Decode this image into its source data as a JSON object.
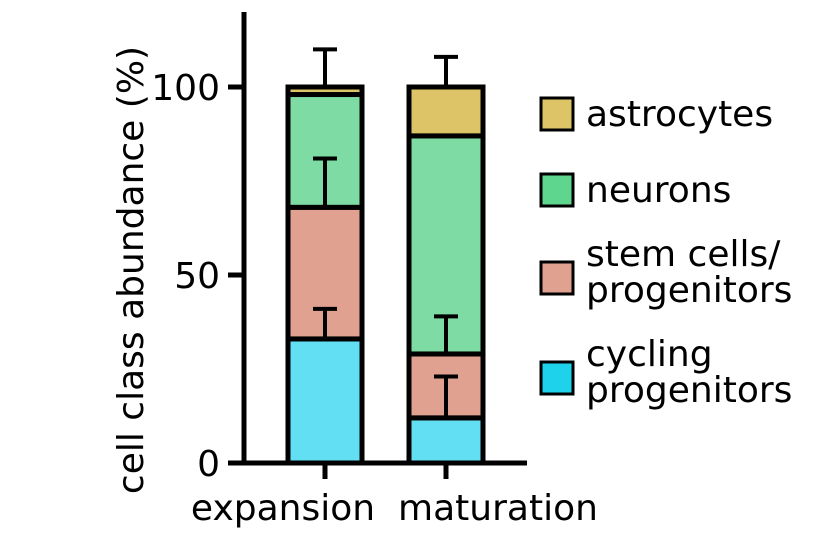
{
  "chart_data": {
    "type": "bar",
    "stacked": true,
    "ylabel": "cell class abundance (%)",
    "xlabel": "",
    "ylim": [
      0,
      120
    ],
    "yticks": [
      "0",
      "50",
      "100"
    ],
    "ytick_values": [
      0,
      50,
      100
    ],
    "categories": [
      "expansion",
      "maturation"
    ],
    "series": [
      {
        "name": "cycling progenitors",
        "values": [
          33,
          12
        ],
        "errors": [
          8,
          11
        ],
        "color": "#62dff3"
      },
      {
        "name": "stem cells/ progenitors",
        "values": [
          35,
          17
        ],
        "errors": [
          13,
          10
        ],
        "color": "#e1a191"
      },
      {
        "name": "neurons",
        "values": [
          30,
          58
        ],
        "errors": [
          0,
          0
        ],
        "color": "#7ddba3"
      },
      {
        "name": "astrocytes",
        "values": [
          2,
          13
        ],
        "errors": [
          10,
          8
        ],
        "color": "#dcc467"
      }
    ],
    "legend": {
      "position": "right",
      "entries": [
        {
          "lines": [
            "astrocytes"
          ],
          "color": "#dcc467"
        },
        {
          "lines": [
            "neurons"
          ],
          "color": "#5fd68d"
        },
        {
          "lines": [
            "stem cells/",
            "progenitors"
          ],
          "color": "#e1a191"
        },
        {
          "lines": [
            "cycling",
            "progenitors"
          ],
          "color": "#1fd2ec"
        }
      ]
    },
    "grid": false
  }
}
